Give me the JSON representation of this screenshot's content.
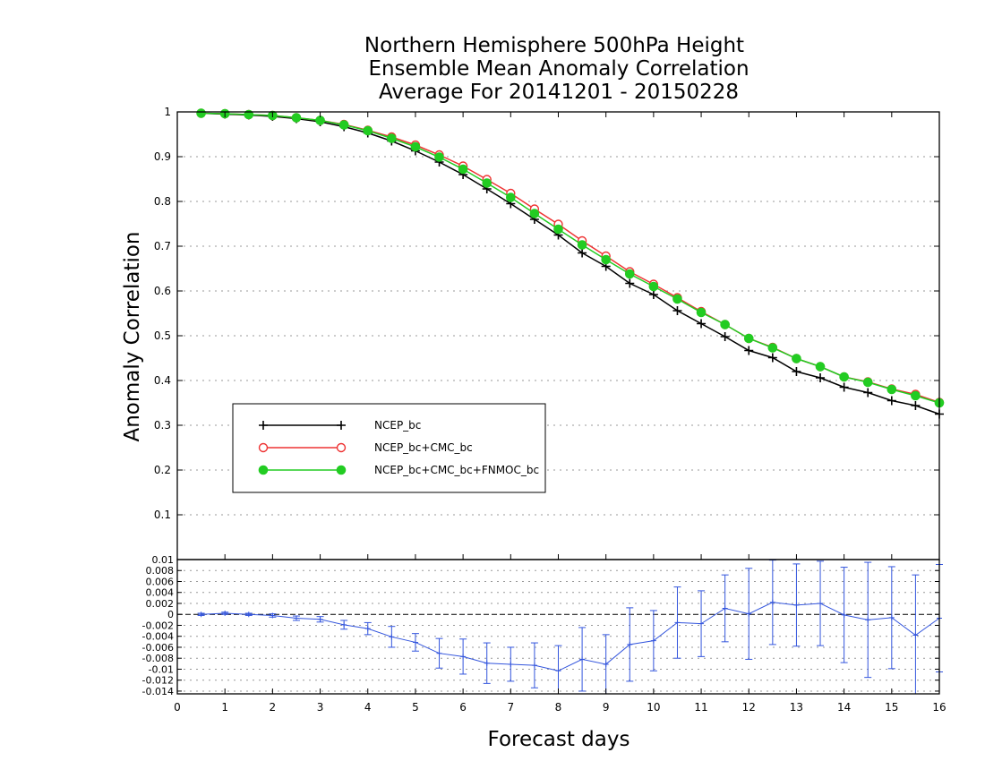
{
  "title_lines": [
    "Northern Hemisphere 500hPa Height",
    "Ensemble Mean Anomaly Correlation",
    "Average For 20141201 - 20150228"
  ],
  "colors": {
    "NCEP_bc": "#000000",
    "NCEP_bc+CMC_bc": "#ee3333",
    "NCEP_bc+CMC_bc+FNMOC_bc": "#22cc22",
    "difference": "#3355dd"
  },
  "chart_data": [
    {
      "type": "line",
      "ylabel": "Anomaly Correlation",
      "xlim": [
        0,
        16
      ],
      "ylim": [
        0,
        1
      ],
      "grid": true,
      "legend_placement": "left-center",
      "x": [
        0.5,
        1,
        1.5,
        2,
        2.5,
        3,
        3.5,
        4,
        4.5,
        5,
        5.5,
        6,
        6.5,
        7,
        7.5,
        8,
        8.5,
        9,
        9.5,
        10,
        10.5,
        11,
        11.5,
        12,
        12.5,
        13,
        13.5,
        14,
        14.5,
        15,
        15.5,
        16
      ],
      "xticks": [
        "0",
        "1",
        "2",
        "3",
        "4",
        "5",
        "6",
        "7",
        "8",
        "9",
        "10",
        "11",
        "12",
        "13",
        "14",
        "15",
        "16"
      ],
      "yticks": [
        "0.1",
        "0.2",
        "0.3",
        "0.4",
        "0.5",
        "0.6",
        "0.7",
        "0.8",
        "0.9",
        "1"
      ],
      "series": [
        {
          "name": "NCEP_bc",
          "marker": "plus",
          "values": [
            0.997,
            0.995,
            0.993,
            0.99,
            0.985,
            0.978,
            0.967,
            0.953,
            0.935,
            0.913,
            0.888,
            0.86,
            0.828,
            0.795,
            0.76,
            0.725,
            0.685,
            0.655,
            0.617,
            0.592,
            0.556,
            0.527,
            0.498,
            0.467,
            0.451,
            0.42,
            0.406,
            0.385,
            0.373,
            0.355,
            0.344,
            0.325
          ]
        },
        {
          "name": "NCEP_bc+CMC_bc",
          "marker": "open-circle",
          "values": [
            0.997,
            0.996,
            0.994,
            0.992,
            0.987,
            0.981,
            0.972,
            0.959,
            0.944,
            0.926,
            0.904,
            0.879,
            0.849,
            0.818,
            0.783,
            0.749,
            0.712,
            0.678,
            0.643,
            0.615,
            0.585,
            0.554,
            0.525,
            0.494,
            0.474,
            0.449,
            0.431,
            0.408,
            0.397,
            0.381,
            0.369,
            0.351
          ]
        },
        {
          "name": "NCEP_bc+CMC_bc+FNMOC_bc",
          "marker": "filled-circle",
          "values": [
            0.997,
            0.996,
            0.994,
            0.992,
            0.987,
            0.981,
            0.971,
            0.958,
            0.941,
            0.922,
            0.899,
            0.872,
            0.841,
            0.809,
            0.773,
            0.738,
            0.703,
            0.67,
            0.638,
            0.61,
            0.582,
            0.552,
            0.525,
            0.494,
            0.473,
            0.449,
            0.431,
            0.408,
            0.396,
            0.38,
            0.366,
            0.35
          ]
        }
      ]
    },
    {
      "type": "line",
      "xlabel": "Forecast days",
      "xlim": [
        0,
        16
      ],
      "ylim": [
        -0.0145,
        0.01
      ],
      "grid": true,
      "yticks": [
        "0.01",
        "0.008",
        "0.006",
        "0.004",
        "0.002",
        "0",
        "-0.002",
        "-0.004",
        "-0.006",
        "-0.008",
        "-0.01",
        "-0.012",
        "-0.014"
      ],
      "ytick_values": [
        0.01,
        0.008,
        0.006,
        0.004,
        0.002,
        0,
        -0.002,
        -0.004,
        -0.006,
        -0.008,
        -0.01,
        -0.012,
        -0.014
      ],
      "x": [
        0.5,
        1,
        1.5,
        2,
        2.5,
        3,
        3.5,
        4,
        4.5,
        5,
        5.5,
        6,
        6.5,
        7,
        7.5,
        8,
        8.5,
        9,
        9.5,
        10,
        10.5,
        11,
        11.5,
        12,
        12.5,
        13,
        13.5,
        14,
        14.5,
        15,
        15.5,
        16
      ],
      "series": [
        {
          "name": "",
          "marker": "plus",
          "values": [
            0.0,
            0.0002,
            0.0,
            -0.0002,
            -0.0007,
            -0.0009,
            -0.0019,
            -0.0026,
            -0.0041,
            -0.0051,
            -0.0071,
            -0.0077,
            -0.0089,
            -0.0091,
            -0.0093,
            -0.0103,
            -0.0082,
            -0.0091,
            -0.0055,
            -0.0048,
            -0.0015,
            -0.0017,
            0.0011,
            0.0001,
            0.0022,
            0.0017,
            0.002,
            -0.0001,
            -0.001,
            -0.0006,
            -0.0038,
            -0.0007
          ],
          "error": [
            0.0002,
            0.0002,
            0.0002,
            0.0003,
            0.0004,
            0.0005,
            0.0008,
            0.0011,
            0.0019,
            0.0016,
            0.0027,
            0.0032,
            0.0037,
            0.0031,
            0.0041,
            0.0046,
            0.0058,
            0.0054,
            0.0067,
            0.0055,
            0.0065,
            0.006,
            0.0061,
            0.0083,
            0.0077,
            0.0075,
            0.0077,
            0.0087,
            0.0105,
            0.0093,
            0.011,
            0.0098
          ]
        }
      ]
    }
  ]
}
